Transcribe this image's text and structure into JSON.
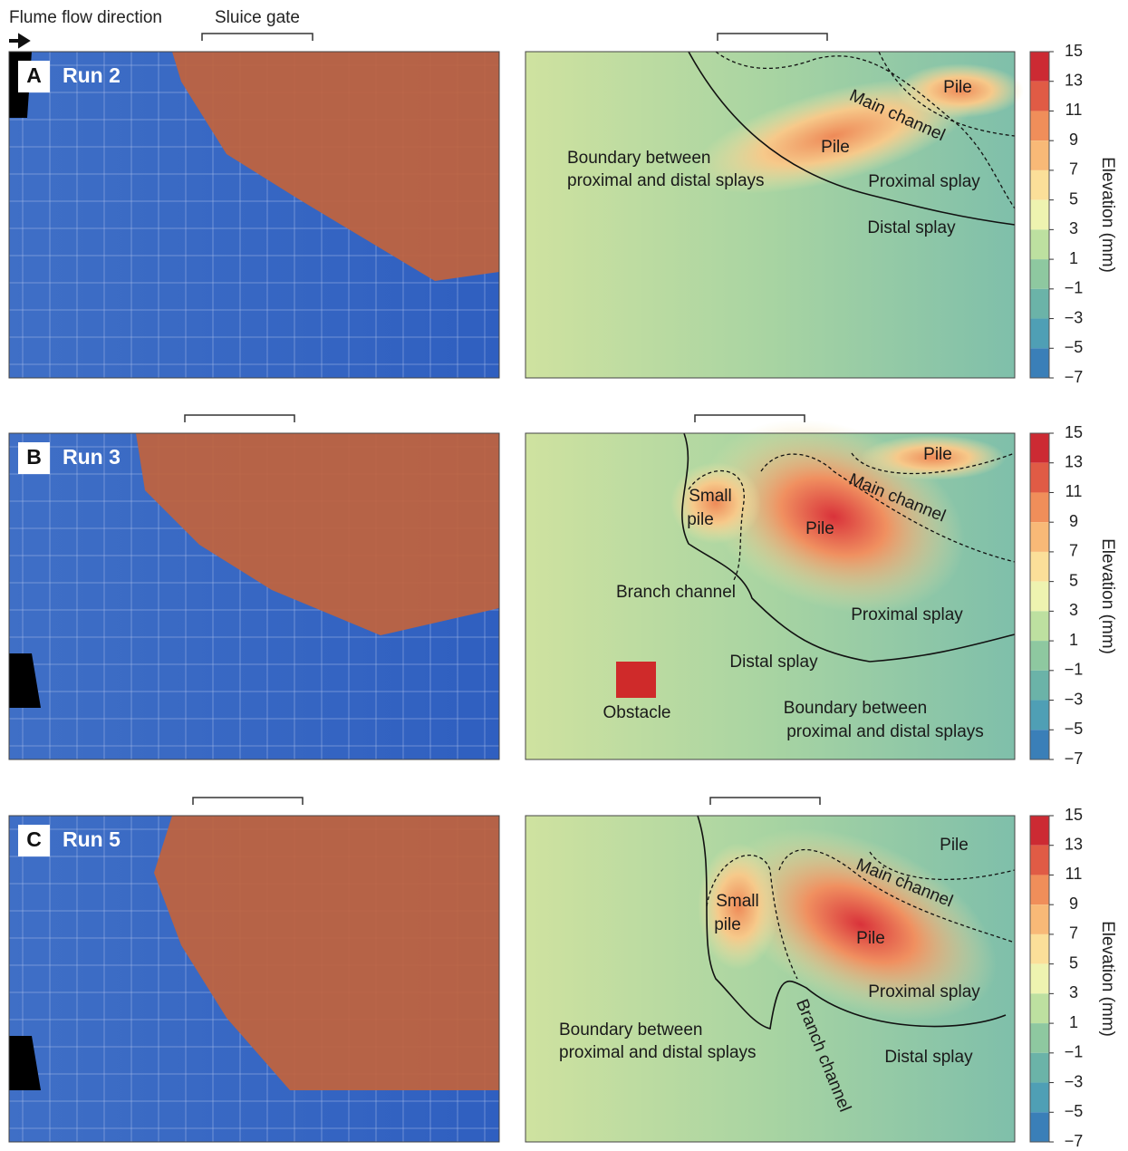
{
  "header": {
    "flow_label": "Flume flow direction",
    "gate_label": "Sluice gate"
  },
  "colorbar": {
    "label": "Elevation (mm)",
    "ticks": [
      15,
      13,
      11,
      9,
      7,
      5,
      3,
      1,
      {
        "value": -1,
        "label": "−1"
      },
      {
        "value": -3,
        "label": "−3"
      },
      {
        "value": -5,
        "label": "−5"
      },
      {
        "value": -7,
        "label": "−7"
      }
    ],
    "colors": [
      "#cc2a33",
      "#e05b45",
      "#f08e5a",
      "#f8b977",
      "#fbdf99",
      "#eef3b0",
      "#bde0a0",
      "#8ec8a0",
      "#6bb3a8",
      "#4f9fb5",
      "#3a7fb8"
    ]
  },
  "panels": [
    {
      "letter": "A",
      "run": "Run 2",
      "annotations": [
        "Pile",
        "Main channel",
        "Pile",
        "Boundary between",
        "proximal and distal splays",
        "Proximal splay",
        "Distal splay"
      ]
    },
    {
      "letter": "B",
      "run": "Run 3",
      "annotations": [
        "Pile",
        "Main channel",
        "Small",
        "pile",
        "Pile",
        "Branch channel",
        "Proximal splay",
        "Distal splay",
        "Obstacle",
        "Boundary between",
        "proximal and distal splays"
      ]
    },
    {
      "letter": "C",
      "run": "Run 5",
      "annotations": [
        "Pile",
        "Main channel",
        "Small",
        "pile",
        "Pile",
        "Proximal splay",
        "Boundary between",
        "proximal and distal splays",
        "Branch channel",
        "Distal splay"
      ]
    }
  ]
}
